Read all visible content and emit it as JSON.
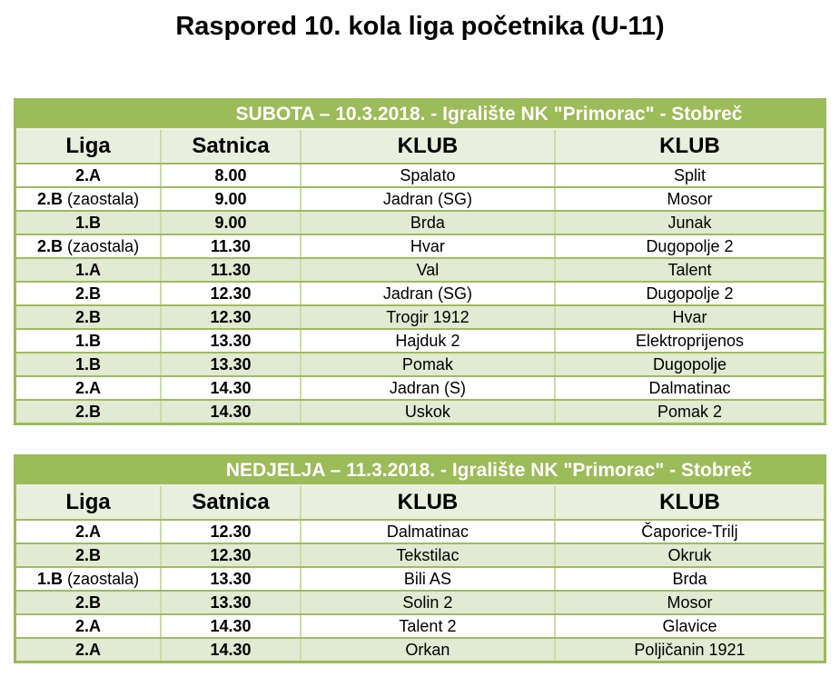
{
  "page_title": "Raspored 10. kola liga početnika (U-11)",
  "colors": {
    "banner_green": "#9CBB59",
    "stripe_green": "#E1EAD2",
    "header_row_green": "#E9EFDE",
    "row_border_green": "#9FBB5E",
    "col_border_green": "#CBDCA6",
    "banner_text": "#FFFFFF",
    "text_black": "#000000"
  },
  "tables": [
    {
      "banner": "SUBOTA – 10.3.2018. - Igralište NK \"Primorac\" - Stobreč",
      "columns": [
        "Liga",
        "Satnica",
        "KLUB",
        "KLUB"
      ],
      "rows": [
        {
          "liga": "2.A",
          "note": "",
          "satnica": "8.00",
          "klub1": "Spalato",
          "klub2": "Split",
          "shaded": false
        },
        {
          "liga": "2.B",
          "note": "(zaostala)",
          "satnica": "9.00",
          "klub1": "Jadran (SG)",
          "klub2": "Mosor",
          "shaded": false
        },
        {
          "liga": "1.B",
          "note": "",
          "satnica": "9.00",
          "klub1": "Brda",
          "klub2": "Junak",
          "shaded": true
        },
        {
          "liga": "2.B",
          "note": "(zaostala)",
          "satnica": "11.30",
          "klub1": "Hvar",
          "klub2": "Dugopolje 2",
          "shaded": false
        },
        {
          "liga": "1.A",
          "note": "",
          "satnica": "11.30",
          "klub1": "Val",
          "klub2": "Talent",
          "shaded": true
        },
        {
          "liga": "2.B",
          "note": "",
          "satnica": "12.30",
          "klub1": "Jadran (SG)",
          "klub2": "Dugopolje 2",
          "shaded": false
        },
        {
          "liga": "2.B",
          "note": "",
          "satnica": "12.30",
          "klub1": "Trogir 1912",
          "klub2": "Hvar",
          "shaded": true
        },
        {
          "liga": "1.B",
          "note": "",
          "satnica": "13.30",
          "klub1": "Hajduk 2",
          "klub2": "Elektroprijenos",
          "shaded": false
        },
        {
          "liga": "1.B",
          "note": "",
          "satnica": "13.30",
          "klub1": "Pomak",
          "klub2": "Dugopolje",
          "shaded": true
        },
        {
          "liga": "2.A",
          "note": "",
          "satnica": "14.30",
          "klub1": "Jadran (S)",
          "klub2": "Dalmatinac",
          "shaded": false
        },
        {
          "liga": "2.B",
          "note": "",
          "satnica": "14.30",
          "klub1": "Uskok",
          "klub2": "Pomak 2",
          "shaded": true
        }
      ]
    },
    {
      "banner": "NEDJELJA – 11.3.2018. - Igralište NK \"Primorac\" - Stobreč",
      "columns": [
        "Liga",
        "Satnica",
        "KLUB",
        "KLUB"
      ],
      "rows": [
        {
          "liga": "2.A",
          "note": "",
          "satnica": "12.30",
          "klub1": "Dalmatinac",
          "klub2": "Čaporice-Trilj",
          "shaded": false
        },
        {
          "liga": "2.B",
          "note": "",
          "satnica": "12.30",
          "klub1": "Tekstilac",
          "klub2": "Okruk",
          "shaded": true
        },
        {
          "liga": "1.B",
          "note": "(zaostala)",
          "satnica": "13.30",
          "klub1": "Bili AS",
          "klub2": "Brda",
          "shaded": false
        },
        {
          "liga": "2.B",
          "note": "",
          "satnica": "13.30",
          "klub1": "Solin 2",
          "klub2": "Mosor",
          "shaded": true
        },
        {
          "liga": "2.A",
          "note": "",
          "satnica": "14.30",
          "klub1": "Talent 2",
          "klub2": "Glavice",
          "shaded": false
        },
        {
          "liga": "2.A",
          "note": "",
          "satnica": "14.30",
          "klub1": "Orkan",
          "klub2": "Poljičanin 1921",
          "shaded": true
        }
      ]
    }
  ]
}
